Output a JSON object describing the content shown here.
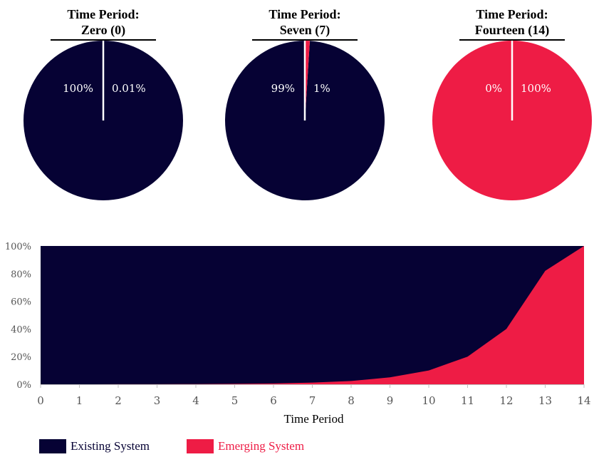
{
  "colors": {
    "existing": "#060234",
    "emerging": "#ee1c45",
    "axis_text": "#555555",
    "divider": "#ffffff"
  },
  "chart_data": [
    {
      "type": "pie",
      "title_line1": "Time Period:",
      "title_line2": "Zero (0)",
      "slices": [
        {
          "name": "Existing System",
          "value": 99.99,
          "label": "100%"
        },
        {
          "name": "Emerging System",
          "value": 0.01,
          "label": "0.01%"
        }
      ]
    },
    {
      "type": "pie",
      "title_line1": "Time Period:",
      "title_line2": "Seven (7)",
      "slices": [
        {
          "name": "Existing System",
          "value": 99,
          "label": "99%"
        },
        {
          "name": "Emerging System",
          "value": 1,
          "label": "1%"
        }
      ]
    },
    {
      "type": "pie",
      "title_line1": "Time Period:",
      "title_line2": "Fourteen (14)",
      "slices": [
        {
          "name": "Existing System",
          "value": 0,
          "label": "0%"
        },
        {
          "name": "Emerging System",
          "value": 100,
          "label": "100%"
        }
      ]
    },
    {
      "type": "area",
      "stacked": "percent",
      "xlabel": "Time Period",
      "ylabel": "",
      "x": [
        0,
        1,
        2,
        3,
        4,
        5,
        6,
        7,
        8,
        9,
        10,
        11,
        12,
        13,
        14
      ],
      "x_tick_labels": [
        "0",
        "1",
        "2",
        "3",
        "4",
        "5",
        "6",
        "7",
        "8",
        "9",
        "10",
        "11",
        "12",
        "13",
        "14"
      ],
      "y_tick_labels": [
        "0%",
        "20%",
        "40%",
        "60%",
        "80%",
        "100%"
      ],
      "ylim": [
        0,
        100
      ],
      "grid": false,
      "series": [
        {
          "name": "Emerging System",
          "values": [
            0.01,
            0.02,
            0.04,
            0.08,
            0.16,
            0.3,
            0.6,
            1.2,
            2.4,
            5,
            10,
            20,
            40,
            82,
            100
          ]
        },
        {
          "name": "Existing System",
          "values": [
            99.99,
            99.98,
            99.96,
            99.92,
            99.84,
            99.7,
            99.4,
            98.8,
            97.6,
            95,
            90,
            80,
            60,
            18,
            0
          ]
        }
      ],
      "legend": {
        "position": "bottom-left",
        "items": [
          {
            "label": "Existing System",
            "color": "#060234"
          },
          {
            "label": "Emerging System",
            "color": "#ee1c45"
          }
        ]
      }
    }
  ]
}
